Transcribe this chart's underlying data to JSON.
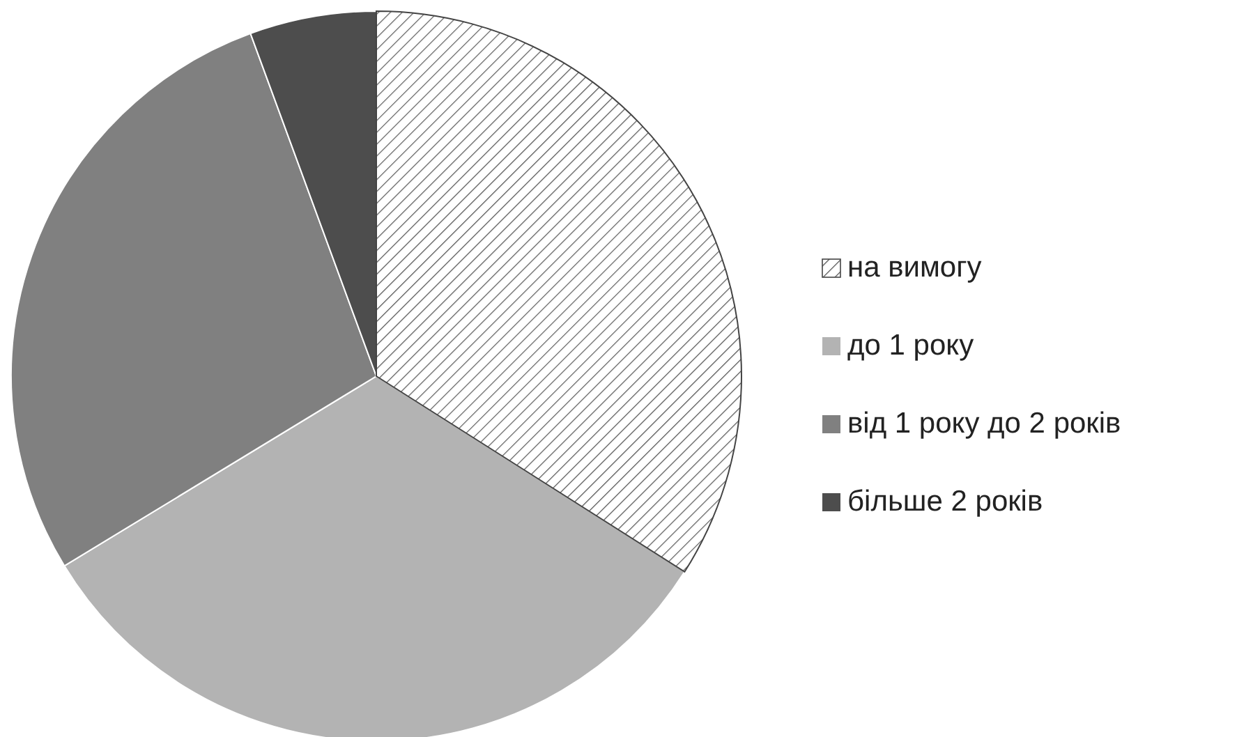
{
  "chart_data": {
    "type": "pie",
    "categories": [
      "на вимогу",
      "до 1 року",
      "від 1 року до 2 років",
      "більше 2 років"
    ],
    "values": [
      34,
      32.3,
      28.1,
      5.6
    ],
    "colors": [
      "#ffffff",
      "#b3b3b3",
      "#808080",
      "#4d4d4d"
    ],
    "legend": "right"
  }
}
